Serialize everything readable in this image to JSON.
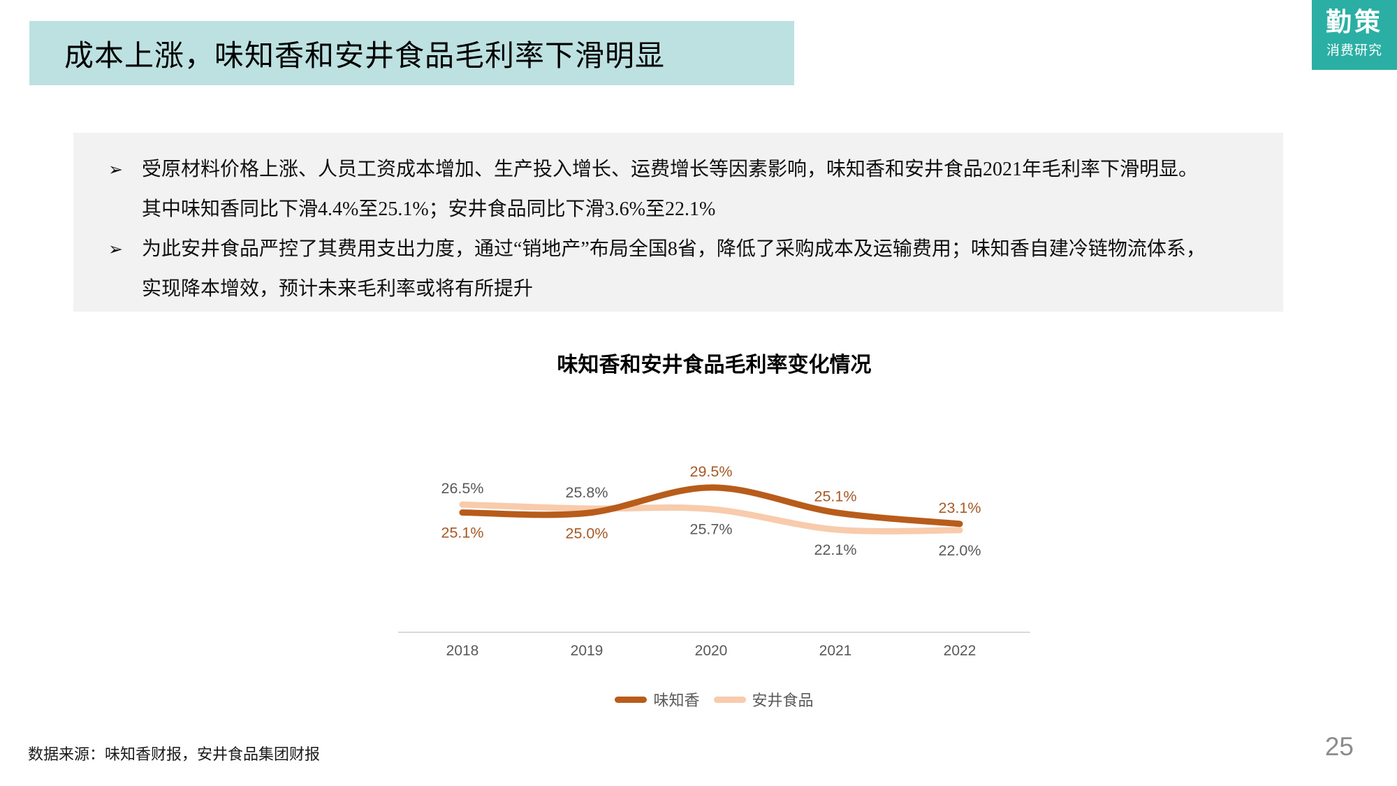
{
  "slide": {
    "title": "成本上涨，味知香和安井食品毛利率下滑明显",
    "page_number": "25",
    "source_note": "数据来源：味知香财报，安井食品集团财报"
  },
  "logo": {
    "brand": "勤策",
    "subtitle": "消费研究"
  },
  "callout": {
    "bullet_glyph": "➢",
    "bullets": [
      {
        "lines": [
          "受原材料价格上涨、人员工资成本增加、生产投入增长、运费增长等因素影响，味知香和安井食品2021年毛利率下滑明显。",
          "其中味知香同比下滑4.4%至25.1%；安井食品同比下滑3.6%至22.1%"
        ]
      },
      {
        "lines": [
          "为此安井食品严控了其费用支出力度，通过“销地产”布局全国8省，降低了采购成本及运输费用；味知香自建冷链物流体系，",
          "实现降本增效，预计未来毛利率或将有所提升"
        ]
      }
    ]
  },
  "chart_data": {
    "type": "line",
    "title": "味知香和安井食品毛利率变化情况",
    "categories": [
      "2018",
      "2019",
      "2020",
      "2021",
      "2022"
    ],
    "series": [
      {
        "name": "味知香",
        "values": [
          25.1,
          25.0,
          29.5,
          25.1,
          23.1
        ],
        "color": "#B85C1C",
        "label_color": "#A55A28"
      },
      {
        "name": "安井食品",
        "values": [
          26.5,
          25.8,
          25.7,
          22.1,
          22.0
        ],
        "color": "#F7CBAC",
        "label_color": "#595959"
      }
    ],
    "unit": "%",
    "data_labels": true,
    "grid": false,
    "y_axis_visible": false,
    "ylim_hidden": [
      4,
      36
    ],
    "legend_position": "bottom",
    "axis_color": "#D9D9D9",
    "tick_label_color": "#595959"
  },
  "colors": {
    "title_bar_bg": "#BDE0E1",
    "logo_bg": "#2BAEA3",
    "callout_bg": "#F2F2F2",
    "page_number": "#8C8C8C"
  }
}
